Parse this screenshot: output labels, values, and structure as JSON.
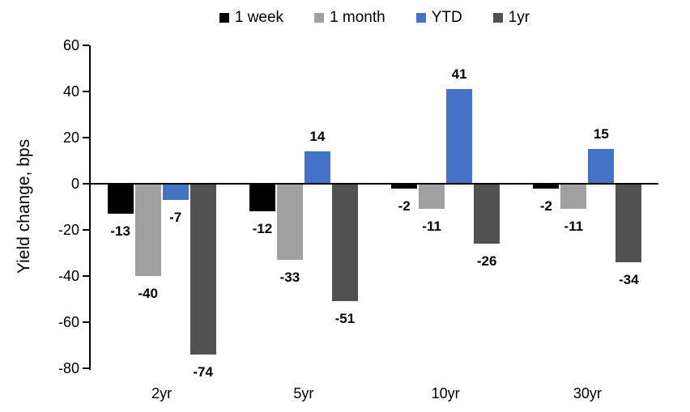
{
  "chart_data": {
    "type": "bar",
    "title": "",
    "ylabel": "Yield change, bps",
    "categories": [
      "2yr",
      "5yr",
      "10yr",
      "30yr"
    ],
    "series": [
      {
        "name": "1 week",
        "color": "#000000",
        "values": [
          -13,
          -12,
          -2,
          -2
        ]
      },
      {
        "name": "1 month",
        "color": "#A0A0A0",
        "values": [
          -40,
          -33,
          -11,
          -11
        ]
      },
      {
        "name": "YTD",
        "color": "#4472C4",
        "values": [
          -7,
          14,
          41,
          15
        ]
      },
      {
        "name": "1yr",
        "color": "#515151",
        "values": [
          -74,
          -51,
          -26,
          -34
        ]
      }
    ],
    "ylim": [
      -80,
      60
    ],
    "yticks": [
      60,
      40,
      20,
      0,
      -20,
      -40,
      -60,
      -80
    ],
    "grid": false,
    "legend_position": "top",
    "value_labels": "outside-end",
    "axis_color": "#000000"
  }
}
